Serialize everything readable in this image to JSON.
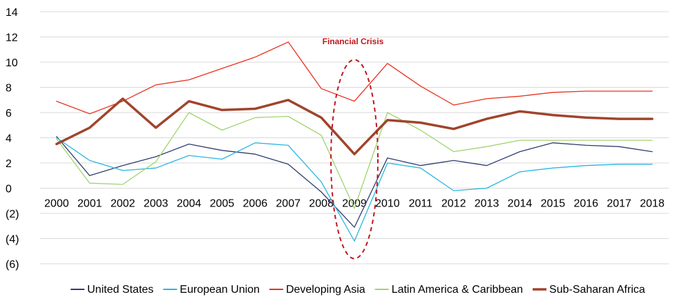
{
  "chart_data": {
    "type": "line",
    "title": "",
    "xlabel": "",
    "ylabel": "",
    "ylim": [
      -6,
      14
    ],
    "yticks": [
      14,
      12,
      10,
      8,
      6,
      4,
      2,
      0,
      -2,
      -4,
      -6
    ],
    "ytick_labels": [
      "14",
      "12",
      "10",
      "8",
      "6",
      "4",
      "2",
      "0",
      "(2)",
      "(4)",
      "(6)"
    ],
    "categories": [
      "2000",
      "2001",
      "2002",
      "2003",
      "2004",
      "2005",
      "2006",
      "2007",
      "2008",
      "2009",
      "2010",
      "2011",
      "2012",
      "2013",
      "2014",
      "2015",
      "2016",
      "2017",
      "2018"
    ],
    "grid": "horizontal",
    "legend_position": "bottom",
    "series": [
      {
        "name": "United States",
        "color": "#2f3c6e",
        "values": [
          4.1,
          1.0,
          1.8,
          2.5,
          3.5,
          3.0,
          2.7,
          1.9,
          -0.3,
          -3.1,
          2.4,
          1.8,
          2.2,
          1.8,
          2.9,
          3.6,
          3.4,
          3.3,
          2.9
        ]
      },
      {
        "name": "European Union",
        "color": "#29b6e0",
        "values": [
          4.0,
          2.2,
          1.4,
          1.6,
          2.6,
          2.3,
          3.6,
          3.4,
          0.5,
          -4.2,
          2.0,
          1.6,
          -0.2,
          0.0,
          1.3,
          1.6,
          1.8,
          1.9,
          1.9
        ]
      },
      {
        "name": "Developing Asia",
        "color": "#e8301e",
        "values": [
          6.9,
          5.9,
          6.9,
          8.2,
          8.6,
          9.5,
          10.4,
          11.6,
          7.9,
          6.9,
          9.9,
          8.1,
          6.6,
          7.1,
          7.3,
          7.6,
          7.7,
          7.7,
          7.7
        ]
      },
      {
        "name": "Latin America & Caribbean",
        "color": "#9fd46e",
        "values": [
          3.9,
          0.4,
          0.3,
          2.1,
          6.0,
          4.6,
          5.6,
          5.7,
          4.2,
          -1.6,
          6.0,
          4.6,
          2.9,
          3.3,
          3.8,
          3.8,
          3.8,
          3.8,
          3.8
        ]
      },
      {
        "name": "Sub-Saharan Africa",
        "color": "#a0442c",
        "values": [
          3.5,
          4.8,
          7.1,
          4.8,
          6.9,
          6.2,
          6.3,
          7.0,
          5.6,
          2.7,
          5.4,
          5.2,
          4.7,
          5.5,
          6.1,
          5.8,
          5.6,
          5.5,
          5.5
        ]
      }
    ],
    "annotation": {
      "text": "Financial Crisis",
      "target_category": "2009",
      "color": "#c0161d"
    }
  }
}
